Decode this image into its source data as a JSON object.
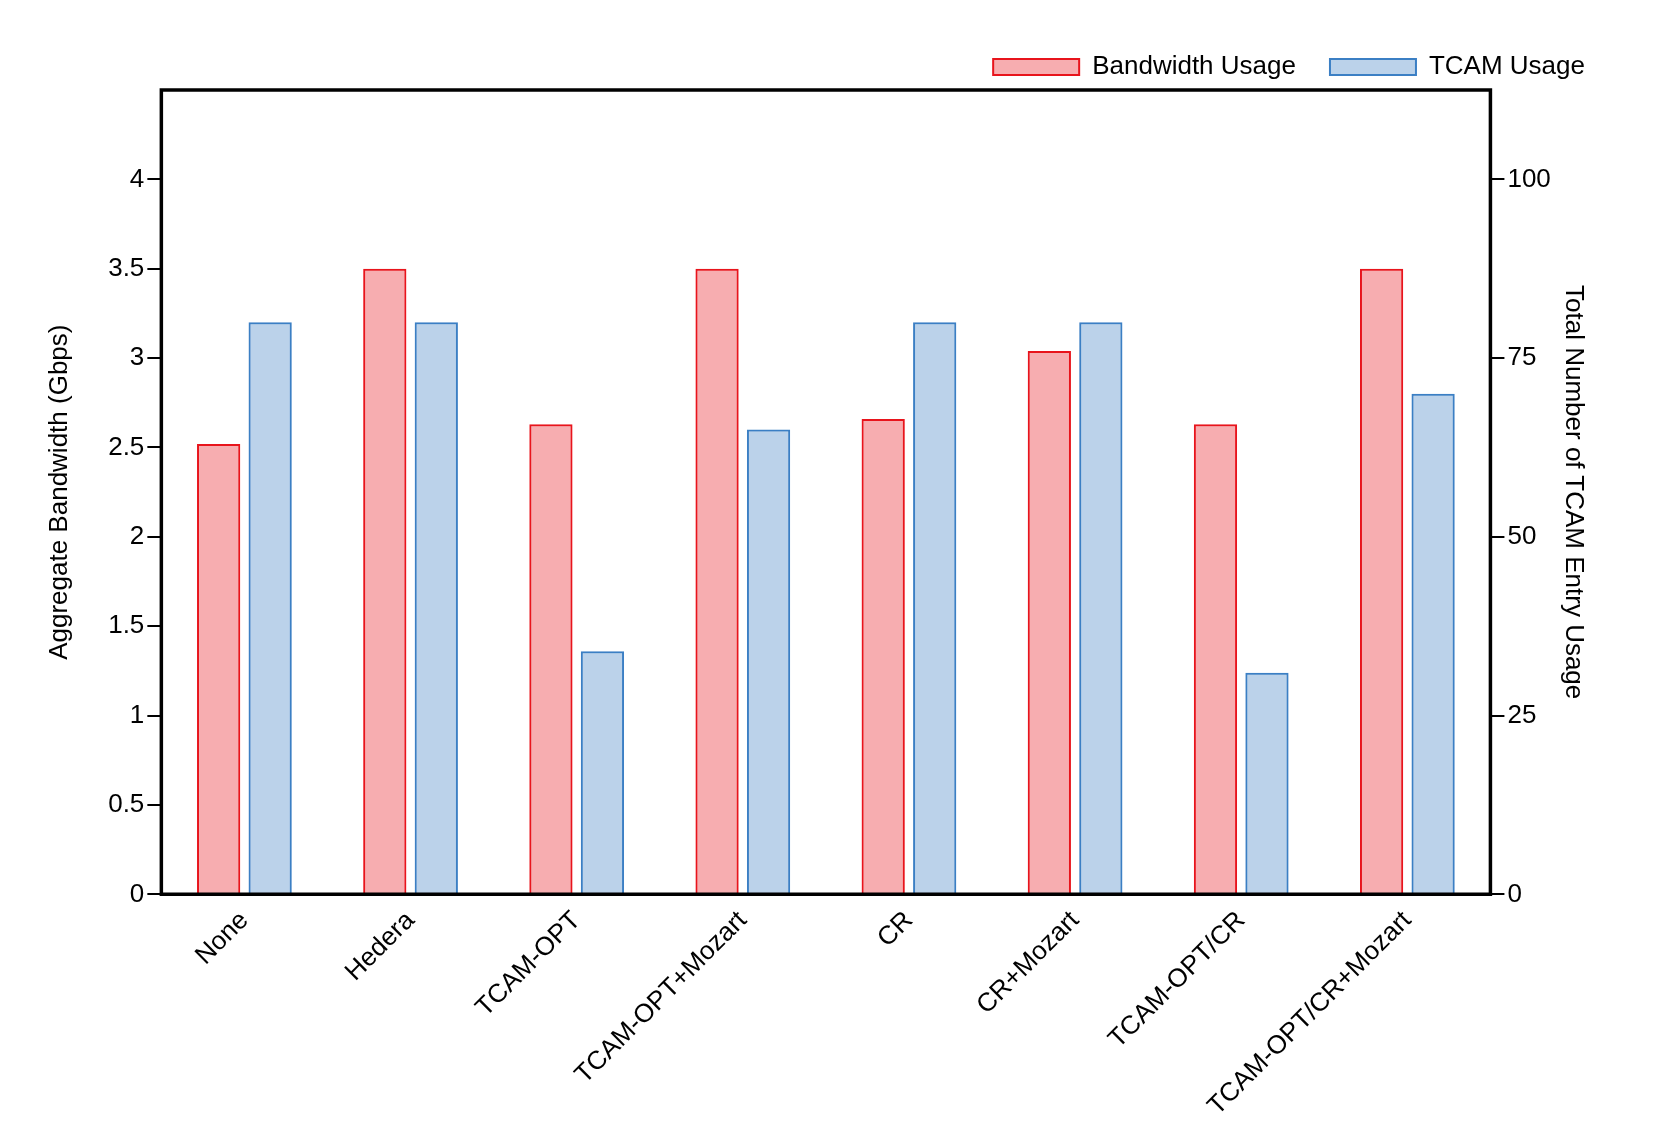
{
  "chart_data": {
    "type": "bar",
    "ylabel": "Aggregate Bandwidth (Gbps)",
    "y2label": "Total Number of TCAM Entry Usage",
    "categories": [
      "None",
      "Hedera",
      "TCAM-OPT",
      "TCAM-OPT+Mozart",
      "CR",
      "CR+Mozart",
      "TCAM-OPT/CR",
      "TCAM-OPT/CR+Mozart"
    ],
    "series": [
      {
        "name": "Bandwidth Usage",
        "color": "#e8141c",
        "values": [
          2.52,
          3.5,
          2.63,
          3.5,
          2.66,
          3.04,
          2.63,
          3.5
        ]
      },
      {
        "name": "TCAM Usage",
        "color": "#3b7fc4",
        "axis": "y2",
        "values": [
          80,
          80,
          34,
          65,
          80,
          80,
          31,
          70
        ]
      }
    ],
    "ylim": [
      0,
      4.5
    ],
    "yticks": [
      0,
      0.5,
      1,
      1.5,
      2,
      2.5,
      3,
      3.5,
      4
    ],
    "y2lim": [
      0,
      112.5
    ],
    "y2ticks": [
      0,
      25,
      50,
      75,
      100
    ],
    "grid": false,
    "legend": "top right"
  }
}
